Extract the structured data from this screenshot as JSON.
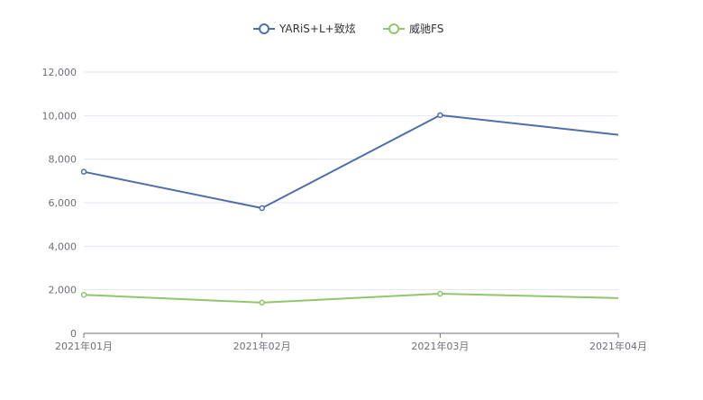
{
  "chart_data": {
    "type": "line",
    "categories": [
      "2021年01月",
      "2021年02月",
      "2021年03月",
      "2021年04月"
    ],
    "series": [
      {
        "name": "YARiS+L+致炫",
        "values": [
          7420,
          5750,
          10020,
          9120
        ],
        "color": "#4e6fa8"
      },
      {
        "name": "威驰FS",
        "values": [
          1770,
          1410,
          1820,
          1620
        ],
        "color": "#91c76b"
      }
    ],
    "y_ticks": [
      "0",
      "2,000",
      "4,000",
      "6,000",
      "8,000",
      "10,000",
      "12,000"
    ],
    "ylim": [
      0,
      12000
    ],
    "grid": true,
    "legend_position": "top-center",
    "axis_color": "#6e7079",
    "grid_color": "#e0e6f1"
  }
}
